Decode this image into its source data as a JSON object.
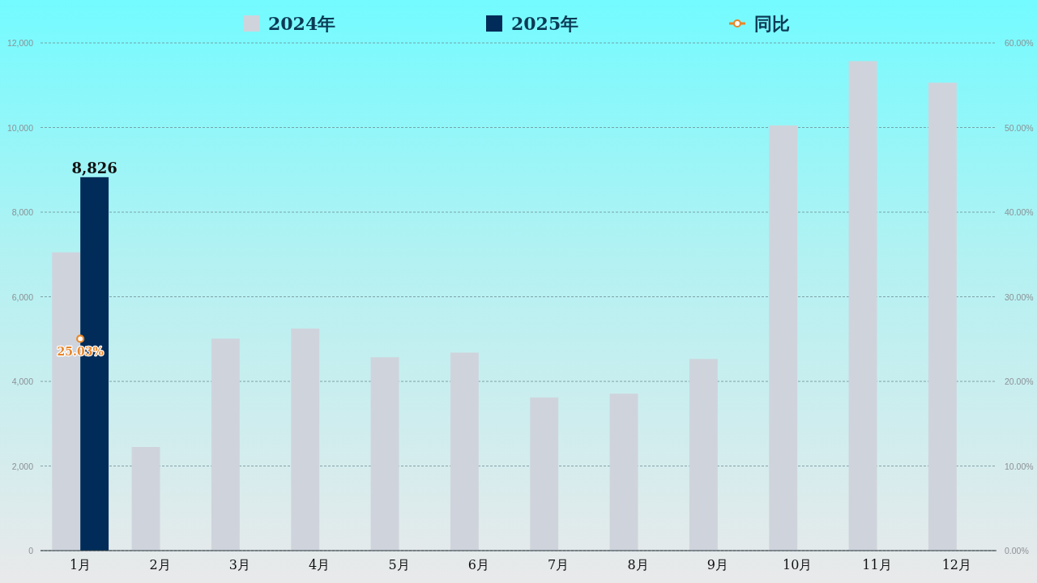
{
  "chart_data": {
    "type": "bar",
    "categories": [
      "1月",
      "2月",
      "3月",
      "4月",
      "5月",
      "6月",
      "7月",
      "8月",
      "9月",
      "10月",
      "11月",
      "12月"
    ],
    "series": [
      {
        "name": "2024年",
        "color": "#cfd4dc",
        "values": [
          7050,
          2450,
          5010,
          5250,
          4570,
          4680,
          3620,
          3710,
          4530,
          10050,
          11570,
          11060
        ]
      },
      {
        "name": "2025年",
        "color": "#012c59",
        "values": [
          8826,
          null,
          null,
          null,
          null,
          null,
          null,
          null,
          null,
          null,
          null,
          null
        ],
        "value_labels": [
          "8,826",
          null,
          null,
          null,
          null,
          null,
          null,
          null,
          null,
          null,
          null,
          null
        ]
      },
      {
        "name": "同比",
        "type": "line",
        "axis": "y2",
        "color": "#e8862a",
        "marker": "circle",
        "values": [
          25.03,
          null,
          null,
          null,
          null,
          null,
          null,
          null,
          null,
          null,
          null,
          null
        ],
        "value_labels": [
          "25.03%",
          null,
          null,
          null,
          null,
          null,
          null,
          null,
          null,
          null,
          null,
          null
        ]
      }
    ],
    "ylim": [
      0,
      12000
    ],
    "yticks": [
      0,
      {
        "value": 2000,
        "label": "2,000"
      },
      {
        "value": 4000,
        "label": "4,000"
      },
      {
        "value": 6000,
        "label": "6,000"
      },
      {
        "value": 8000,
        "label": "8,000"
      },
      {
        "value": 10000,
        "label": "10,000"
      },
      {
        "value": 12000,
        "label": "12,000"
      }
    ],
    "y2lim": [
      0,
      60
    ],
    "y2ticks": [
      {
        "value": 0,
        "label": "0.00%"
      },
      {
        "value": 10,
        "label": "10.00%"
      },
      {
        "value": 20,
        "label": "20.00%"
      },
      {
        "value": 30,
        "label": "30.00%"
      },
      {
        "value": 40,
        "label": "40.00%"
      },
      {
        "value": 50,
        "label": "50.00%"
      },
      {
        "value": 60,
        "label": "60.00%"
      }
    ],
    "grid": "y",
    "legend": "top"
  }
}
